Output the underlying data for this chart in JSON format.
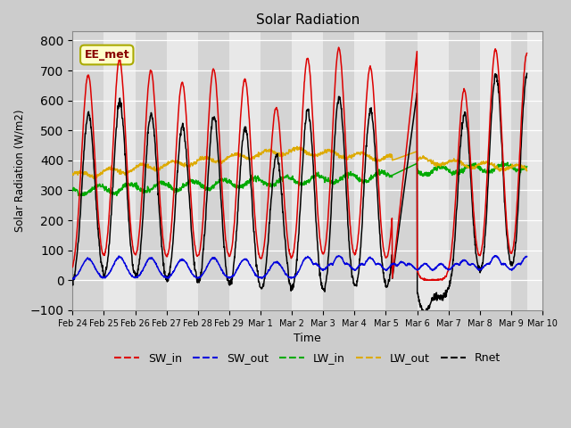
{
  "title": "Solar Radiation",
  "ylabel": "Solar Radiation (W/m2)",
  "xlabel": "Time",
  "ylim": [
    -100,
    830
  ],
  "yticks": [
    -100,
    0,
    100,
    200,
    300,
    400,
    500,
    600,
    700,
    800
  ],
  "line_colors": {
    "SW_in": "#dd0000",
    "SW_out": "#0000dd",
    "LW_in": "#00aa00",
    "LW_out": "#ddaa00",
    "Rnet": "#000000"
  },
  "annotation_text": "EE_met",
  "annotation_bg": "#ffffcc",
  "annotation_border": "#aaaa00",
  "tick_labels": [
    "Feb 24",
    "Feb 25",
    "Feb 26",
    "Feb 27",
    "Feb 28",
    "Feb 29",
    "Mar 1",
    "Mar 2",
    "Mar 3",
    "Mar 4",
    "Mar 5",
    "Mar 6",
    "Mar 7",
    "Mar 8",
    "Mar 9",
    "Mar 10"
  ],
  "band_colors": [
    "#d4d4d4",
    "#e8e8e8"
  ]
}
